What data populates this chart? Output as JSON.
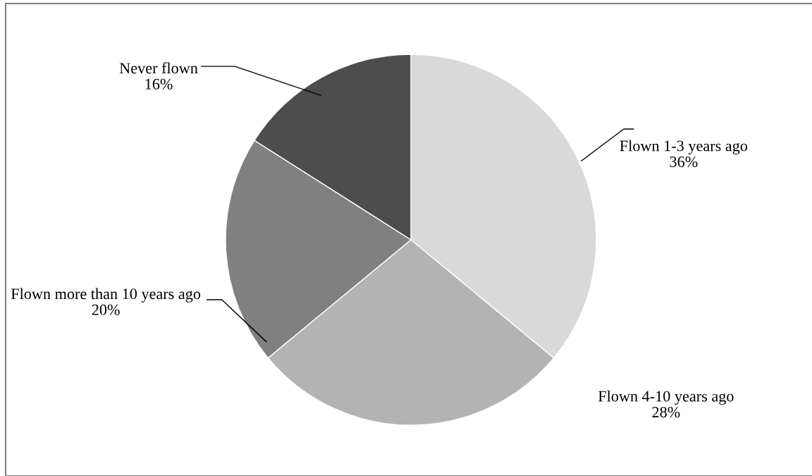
{
  "chart_data": {
    "type": "pie",
    "categories": [
      "Flown 1-3 years ago",
      "Flown 4-10 years ago",
      "Flown more than 10 years ago",
      "Never flown"
    ],
    "values": [
      36,
      28,
      20,
      16
    ],
    "colors": [
      "#d9d9d9",
      "#b3b3b3",
      "#808080",
      "#4d4d4d"
    ],
    "value_labels": [
      "36%",
      "28%",
      "20%",
      "16%"
    ],
    "legend": false
  }
}
